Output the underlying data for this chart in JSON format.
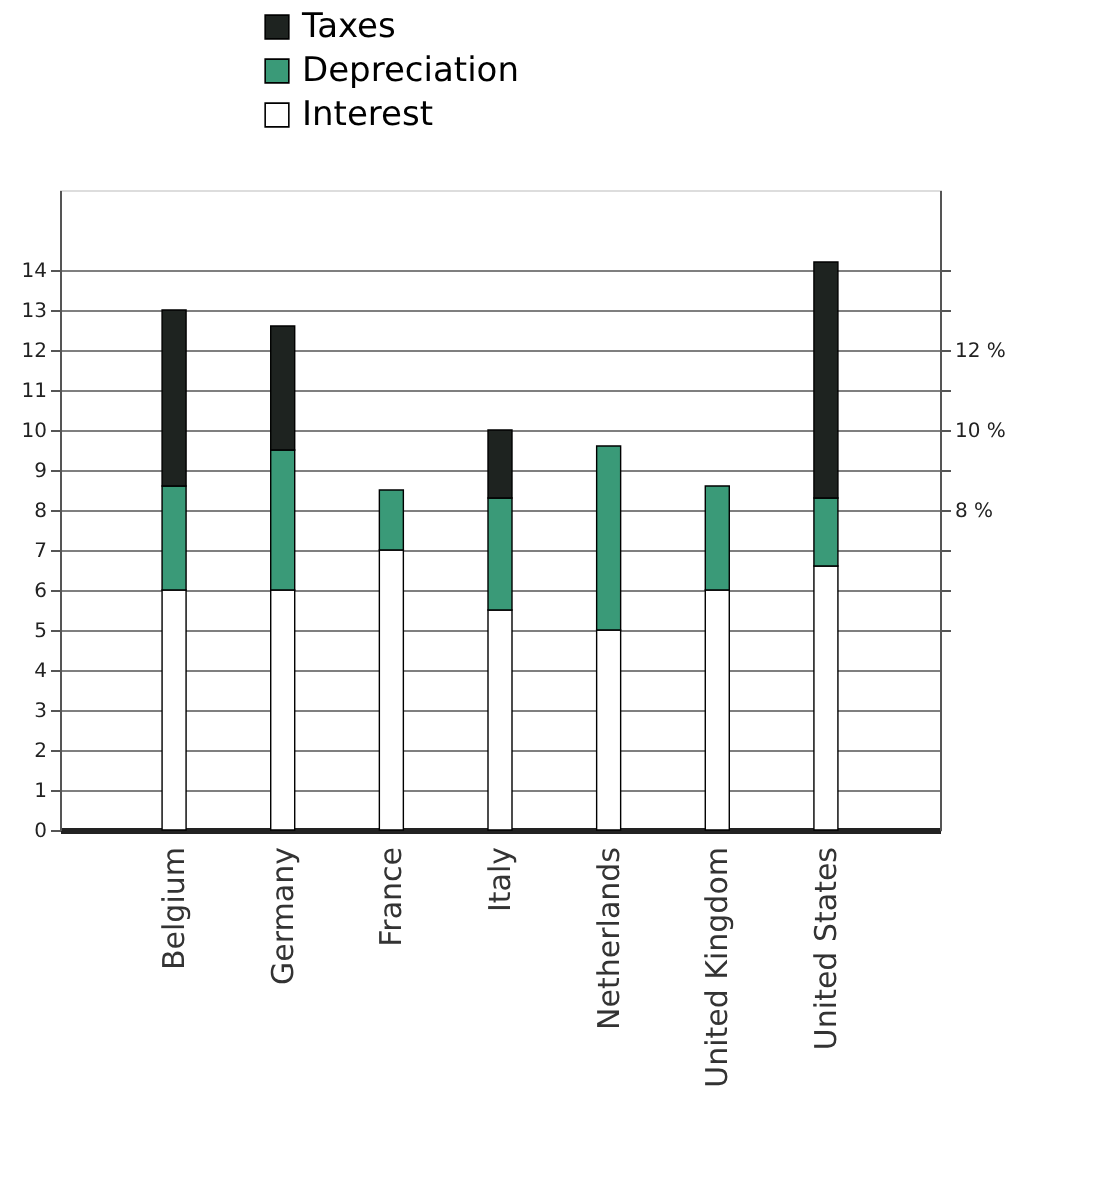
{
  "chart_data": {
    "type": "bar",
    "stacked": true,
    "categories": [
      "Belgium",
      "Germany",
      "France",
      "Italy",
      "Netherlands",
      "United Kingdom",
      "United States"
    ],
    "series": [
      {
        "name": "Interest",
        "color": "#ffffff",
        "values": [
          6,
          6,
          7,
          5.5,
          5,
          6,
          6.6
        ]
      },
      {
        "name": "Depreciation",
        "color": "#3a9a78",
        "values": [
          2.6,
          3.5,
          1.5,
          2.8,
          4.6,
          2.6,
          1.7
        ]
      },
      {
        "name": "Taxes",
        "color": "#1e2320",
        "values": [
          4.4,
          3.1,
          null,
          1.7,
          null,
          null,
          5.9
        ]
      }
    ],
    "ylim": [
      0,
      16
    ],
    "yticks": [
      0,
      1,
      2,
      3,
      4,
      5,
      6,
      7,
      8,
      9,
      10,
      11,
      12,
      13,
      14
    ],
    "y2lim": [
      0,
      16
    ],
    "y2ticks": [
      {
        "value": 5,
        "label": null
      },
      {
        "value": 6,
        "label": null
      },
      {
        "value": 7,
        "label": null
      },
      {
        "value": 8,
        "label": "8 %"
      },
      {
        "value": 9,
        "label": null
      },
      {
        "value": 10,
        "label": "10 %"
      },
      {
        "value": 11,
        "label": null
      },
      {
        "value": 12,
        "label": "12 %"
      },
      {
        "value": 13,
        "label": null
      },
      {
        "value": 14,
        "label": null
      }
    ],
    "grid": "y",
    "legend": "top"
  }
}
